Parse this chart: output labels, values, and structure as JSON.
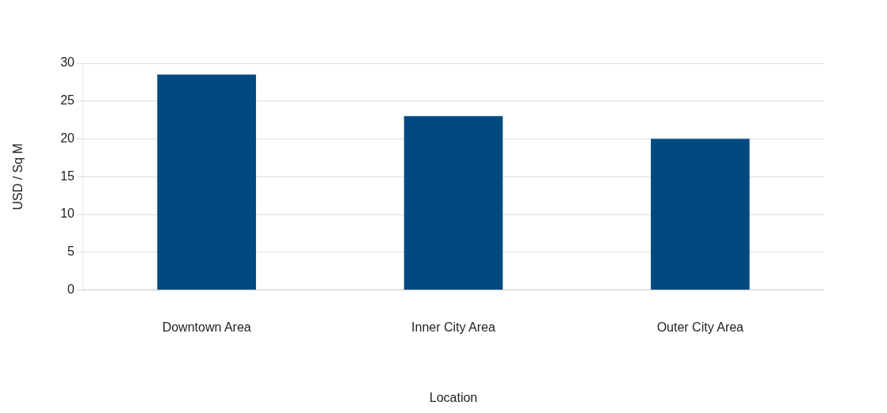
{
  "chart_data": {
    "type": "bar",
    "xlabel": "Location",
    "ylabel": "USD / Sq M",
    "categories": [
      "Downtown Area",
      "Inner City Area",
      "Outer City Area"
    ],
    "values": [
      28.5,
      23,
      20
    ],
    "color": "#004a80",
    "ylim": [
      0,
      30
    ],
    "yticks": [
      0,
      5,
      10,
      15,
      20,
      25,
      30
    ],
    "grid": "y",
    "legend": false
  }
}
